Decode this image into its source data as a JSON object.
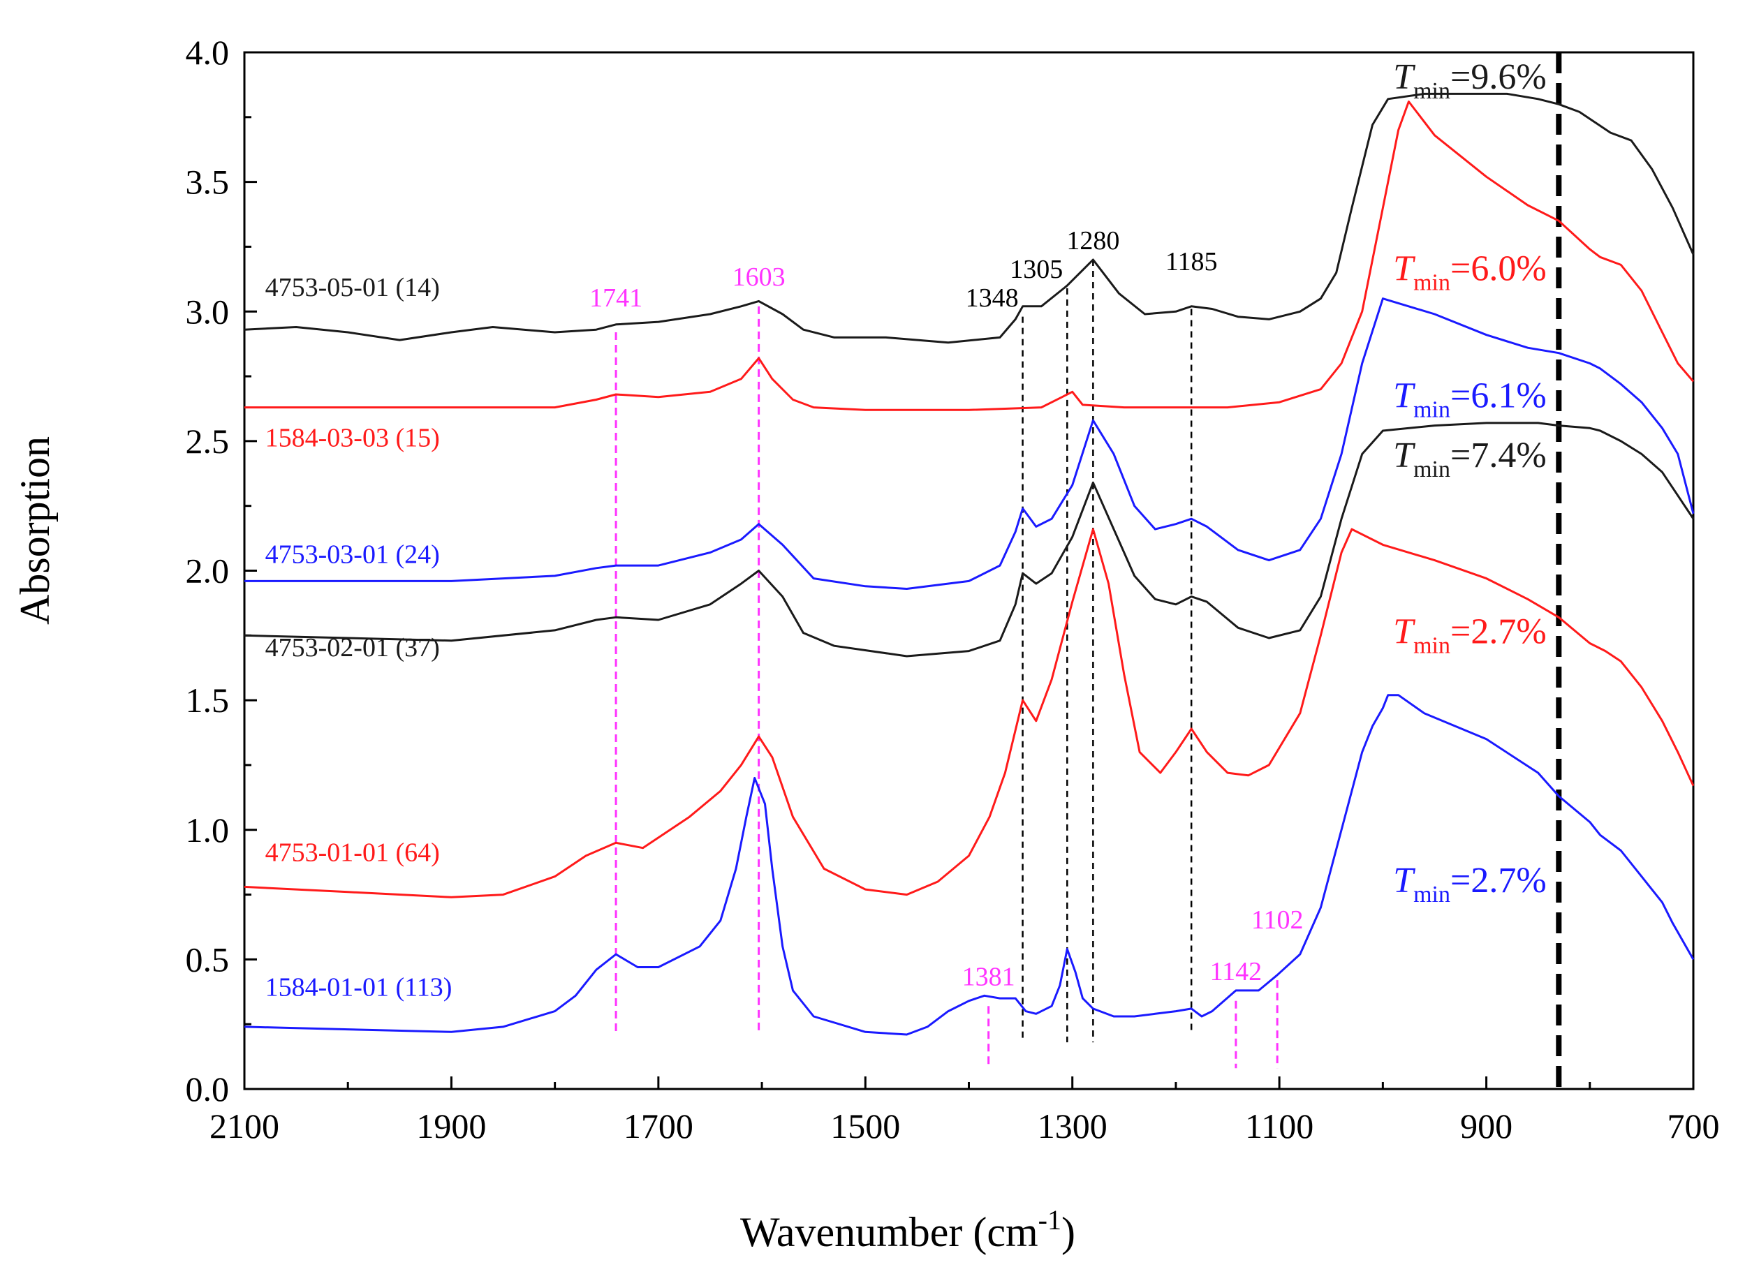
{
  "chart_data": {
    "type": "line",
    "title": "",
    "xlabel": "Wavenumber (cm",
    "xlabel_sup": "-1",
    "xlabel_close": ")",
    "ylabel": "Absorption",
    "xlim": [
      2100,
      700
    ],
    "ylim": [
      0,
      4.0
    ],
    "x_ticks": [
      2100,
      1900,
      1700,
      1500,
      1300,
      1100,
      900,
      700
    ],
    "y_ticks": [
      0.0,
      0.5,
      1.0,
      1.5,
      2.0,
      2.5,
      3.0,
      3.5,
      4.0
    ],
    "y_tick_labels": [
      "0.0",
      "0.5",
      "1.0",
      "1.5",
      "2.0",
      "2.5",
      "3.0",
      "3.5",
      "4.0"
    ],
    "threshold_line_x": 830,
    "colors": {
      "black": "#1a1a1a",
      "red": "#ff1a1a",
      "blue": "#1a1aff",
      "magenta": "#ff33ff"
    },
    "series": [
      {
        "name": "4753-05-01 (14)",
        "color": "black",
        "label_at": [
          2080,
          3.06
        ],
        "t_label": {
          "t": "T",
          "sub": "min",
          "text": "=9.6%",
          "at": [
            990,
            3.86
          ]
        },
        "x": [
          2100,
          2050,
          2000,
          1950,
          1900,
          1860,
          1800,
          1760,
          1741,
          1700,
          1650,
          1620,
          1603,
          1580,
          1560,
          1530,
          1480,
          1420,
          1370,
          1355,
          1348,
          1330,
          1305,
          1280,
          1255,
          1230,
          1200,
          1185,
          1165,
          1140,
          1110,
          1080,
          1060,
          1045,
          1030,
          1010,
          995,
          960,
          920,
          880,
          850,
          830,
          810,
          795,
          780,
          760,
          740,
          720,
          700
        ],
        "y": [
          2.93,
          2.94,
          2.92,
          2.89,
          2.92,
          2.94,
          2.92,
          2.93,
          2.95,
          2.96,
          2.99,
          3.02,
          3.04,
          2.99,
          2.93,
          2.9,
          2.9,
          2.88,
          2.9,
          2.97,
          3.02,
          3.02,
          3.1,
          3.2,
          3.07,
          2.99,
          3.0,
          3.02,
          3.01,
          2.98,
          2.97,
          3.0,
          3.05,
          3.15,
          3.4,
          3.72,
          3.82,
          3.84,
          3.84,
          3.84,
          3.82,
          3.8,
          3.77,
          3.73,
          3.69,
          3.66,
          3.55,
          3.4,
          3.22
        ]
      },
      {
        "name": "1584-03-03 (15)",
        "color": "red",
        "label_at": [
          2080,
          2.48
        ],
        "t_label": {
          "t": "T",
          "sub": "min",
          "text": "=6.0%",
          "at": [
            990,
            3.12
          ]
        },
        "x": [
          2100,
          2000,
          1900,
          1800,
          1760,
          1741,
          1700,
          1650,
          1620,
          1603,
          1590,
          1570,
          1550,
          1500,
          1400,
          1330,
          1310,
          1300,
          1290,
          1250,
          1200,
          1150,
          1100,
          1060,
          1040,
          1020,
          1000,
          985,
          975,
          950,
          900,
          860,
          830,
          800,
          790,
          770,
          750,
          730,
          715,
          700
        ],
        "y": [
          2.63,
          2.63,
          2.63,
          2.63,
          2.66,
          2.68,
          2.67,
          2.69,
          2.74,
          2.82,
          2.74,
          2.66,
          2.63,
          2.62,
          2.62,
          2.63,
          2.67,
          2.69,
          2.64,
          2.63,
          2.63,
          2.63,
          2.65,
          2.7,
          2.8,
          3.0,
          3.4,
          3.7,
          3.81,
          3.68,
          3.52,
          3.41,
          3.35,
          3.24,
          3.21,
          3.18,
          3.08,
          2.92,
          2.8,
          2.73
        ]
      },
      {
        "name": "4753-03-01 (24)",
        "color": "blue",
        "label_at": [
          2080,
          2.03
        ],
        "t_label": {
          "t": "T",
          "sub": "min",
          "text": "=6.1%",
          "at": [
            990,
            2.63
          ]
        },
        "x": [
          2100,
          2000,
          1900,
          1800,
          1760,
          1741,
          1700,
          1650,
          1620,
          1603,
          1580,
          1550,
          1500,
          1460,
          1400,
          1370,
          1355,
          1348,
          1335,
          1320,
          1300,
          1280,
          1260,
          1240,
          1220,
          1200,
          1185,
          1170,
          1140,
          1110,
          1080,
          1060,
          1040,
          1020,
          1000,
          950,
          900,
          860,
          830,
          800,
          790,
          770,
          750,
          730,
          715,
          700
        ],
        "y": [
          1.96,
          1.96,
          1.96,
          1.98,
          2.01,
          2.02,
          2.02,
          2.07,
          2.12,
          2.18,
          2.1,
          1.97,
          1.94,
          1.93,
          1.96,
          2.02,
          2.15,
          2.24,
          2.17,
          2.2,
          2.33,
          2.58,
          2.45,
          2.25,
          2.16,
          2.18,
          2.2,
          2.17,
          2.08,
          2.04,
          2.08,
          2.2,
          2.45,
          2.8,
          3.05,
          2.99,
          2.91,
          2.86,
          2.84,
          2.8,
          2.78,
          2.72,
          2.65,
          2.55,
          2.45,
          2.22
        ]
      },
      {
        "name": "4753-02-01 (37)",
        "color": "black",
        "label_at": [
          2080,
          1.67
        ],
        "t_label": {
          "t": "T",
          "sub": "min",
          "text": "=7.4%",
          "at": [
            990,
            2.4
          ]
        },
        "x": [
          2100,
          2000,
          1900,
          1800,
          1760,
          1741,
          1700,
          1650,
          1620,
          1603,
          1580,
          1560,
          1530,
          1460,
          1400,
          1370,
          1355,
          1348,
          1335,
          1320,
          1300,
          1280,
          1260,
          1240,
          1220,
          1200,
          1185,
          1170,
          1140,
          1110,
          1080,
          1060,
          1040,
          1020,
          1000,
          950,
          900,
          850,
          830,
          800,
          790,
          770,
          750,
          730,
          715,
          700
        ],
        "y": [
          1.75,
          1.74,
          1.73,
          1.77,
          1.81,
          1.82,
          1.81,
          1.87,
          1.95,
          2.0,
          1.9,
          1.76,
          1.71,
          1.67,
          1.69,
          1.73,
          1.87,
          1.99,
          1.95,
          1.99,
          2.13,
          2.34,
          2.16,
          1.98,
          1.89,
          1.87,
          1.9,
          1.88,
          1.78,
          1.74,
          1.77,
          1.9,
          2.2,
          2.45,
          2.54,
          2.56,
          2.57,
          2.57,
          2.56,
          2.55,
          2.54,
          2.5,
          2.45,
          2.38,
          2.29,
          2.2
        ]
      },
      {
        "name": "4753-01-01 (64)",
        "color": "red",
        "label_at": [
          2080,
          0.88
        ],
        "t_label": {
          "t": "T",
          "sub": "min",
          "text": "=2.7%",
          "at": [
            990,
            1.72
          ]
        },
        "x": [
          2100,
          2000,
          1900,
          1850,
          1800,
          1770,
          1741,
          1715,
          1700,
          1670,
          1640,
          1620,
          1603,
          1590,
          1570,
          1540,
          1500,
          1460,
          1430,
          1400,
          1380,
          1365,
          1348,
          1335,
          1320,
          1300,
          1280,
          1265,
          1250,
          1235,
          1215,
          1200,
          1185,
          1170,
          1150,
          1130,
          1110,
          1080,
          1060,
          1040,
          1030,
          1000,
          950,
          900,
          860,
          830,
          800,
          785,
          770,
          750,
          730,
          715,
          700
        ],
        "y": [
          0.78,
          0.76,
          0.74,
          0.75,
          0.82,
          0.9,
          0.95,
          0.93,
          0.97,
          1.05,
          1.15,
          1.25,
          1.36,
          1.28,
          1.05,
          0.85,
          0.77,
          0.75,
          0.8,
          0.9,
          1.05,
          1.22,
          1.5,
          1.42,
          1.58,
          1.88,
          2.16,
          1.95,
          1.6,
          1.3,
          1.22,
          1.3,
          1.39,
          1.3,
          1.22,
          1.21,
          1.25,
          1.45,
          1.75,
          2.07,
          2.16,
          2.1,
          2.04,
          1.97,
          1.89,
          1.82,
          1.72,
          1.69,
          1.65,
          1.55,
          1.42,
          1.3,
          1.17
        ]
      },
      {
        "name": "1584-01-01 (113)",
        "color": "blue",
        "label_at": [
          2080,
          0.36
        ],
        "t_label": {
          "t": "T",
          "sub": "min",
          "text": "=2.7%",
          "at": [
            990,
            0.76
          ]
        },
        "x": [
          2100,
          2000,
          1900,
          1850,
          1800,
          1780,
          1760,
          1741,
          1720,
          1700,
          1660,
          1640,
          1625,
          1615,
          1607,
          1597,
          1590,
          1580,
          1570,
          1550,
          1500,
          1460,
          1440,
          1420,
          1400,
          1385,
          1370,
          1355,
          1345,
          1335,
          1320,
          1312,
          1305,
          1297,
          1290,
          1280,
          1260,
          1240,
          1220,
          1200,
          1185,
          1175,
          1165,
          1142,
          1120,
          1102,
          1080,
          1060,
          1040,
          1020,
          1010,
          1000,
          995,
          985,
          960,
          900,
          850,
          830,
          800,
          790,
          770,
          750,
          730,
          720,
          710,
          700
        ],
        "y": [
          0.24,
          0.23,
          0.22,
          0.24,
          0.3,
          0.36,
          0.46,
          0.52,
          0.47,
          0.47,
          0.55,
          0.65,
          0.85,
          1.05,
          1.2,
          1.1,
          0.85,
          0.55,
          0.38,
          0.28,
          0.22,
          0.21,
          0.24,
          0.3,
          0.34,
          0.36,
          0.35,
          0.35,
          0.3,
          0.29,
          0.32,
          0.4,
          0.54,
          0.45,
          0.35,
          0.31,
          0.28,
          0.28,
          0.29,
          0.3,
          0.31,
          0.28,
          0.3,
          0.38,
          0.38,
          0.44,
          0.52,
          0.7,
          1.0,
          1.3,
          1.4,
          1.47,
          1.52,
          1.52,
          1.45,
          1.35,
          1.22,
          1.13,
          1.03,
          0.98,
          0.92,
          0.82,
          0.72,
          0.64,
          0.57,
          0.5
        ]
      }
    ],
    "black_annotations": [
      {
        "label": "1348",
        "x": 1348,
        "y_top": 2.98,
        "y_bottom": 0.18,
        "label_y": 3.02,
        "anchor": "end"
      },
      {
        "label": "1305",
        "x": 1305,
        "y_top": 3.09,
        "y_bottom": 0.18,
        "label_y": 3.13,
        "anchor": "end"
      },
      {
        "label": "1280",
        "x": 1280,
        "y_top": 3.2,
        "y_bottom": 0.18,
        "label_y": 3.24,
        "anchor": "middle"
      },
      {
        "label": "1185",
        "x": 1185,
        "y_top": 3.01,
        "y_bottom": 0.22,
        "label_y": 3.16,
        "anchor": "middle"
      }
    ],
    "magenta_annotations": [
      {
        "label": "1741",
        "x": 1741,
        "y_top": 2.92,
        "y_bottom": 0.22,
        "label_y": 3.02
      },
      {
        "label": "1603",
        "x": 1603,
        "y_top": 3.02,
        "y_bottom": 0.22,
        "label_y": 3.1
      },
      {
        "label": "1381",
        "x": 1381,
        "y_top": 0.32,
        "y_bottom": 0.08,
        "label_y": 0.4
      },
      {
        "label": "1142",
        "x": 1142,
        "y_top": 0.34,
        "y_bottom": 0.08,
        "label_y": 0.42
      },
      {
        "label": "1102",
        "x": 1102,
        "y_top": 0.42,
        "y_bottom": 0.08,
        "label_y": 0.62
      }
    ]
  }
}
